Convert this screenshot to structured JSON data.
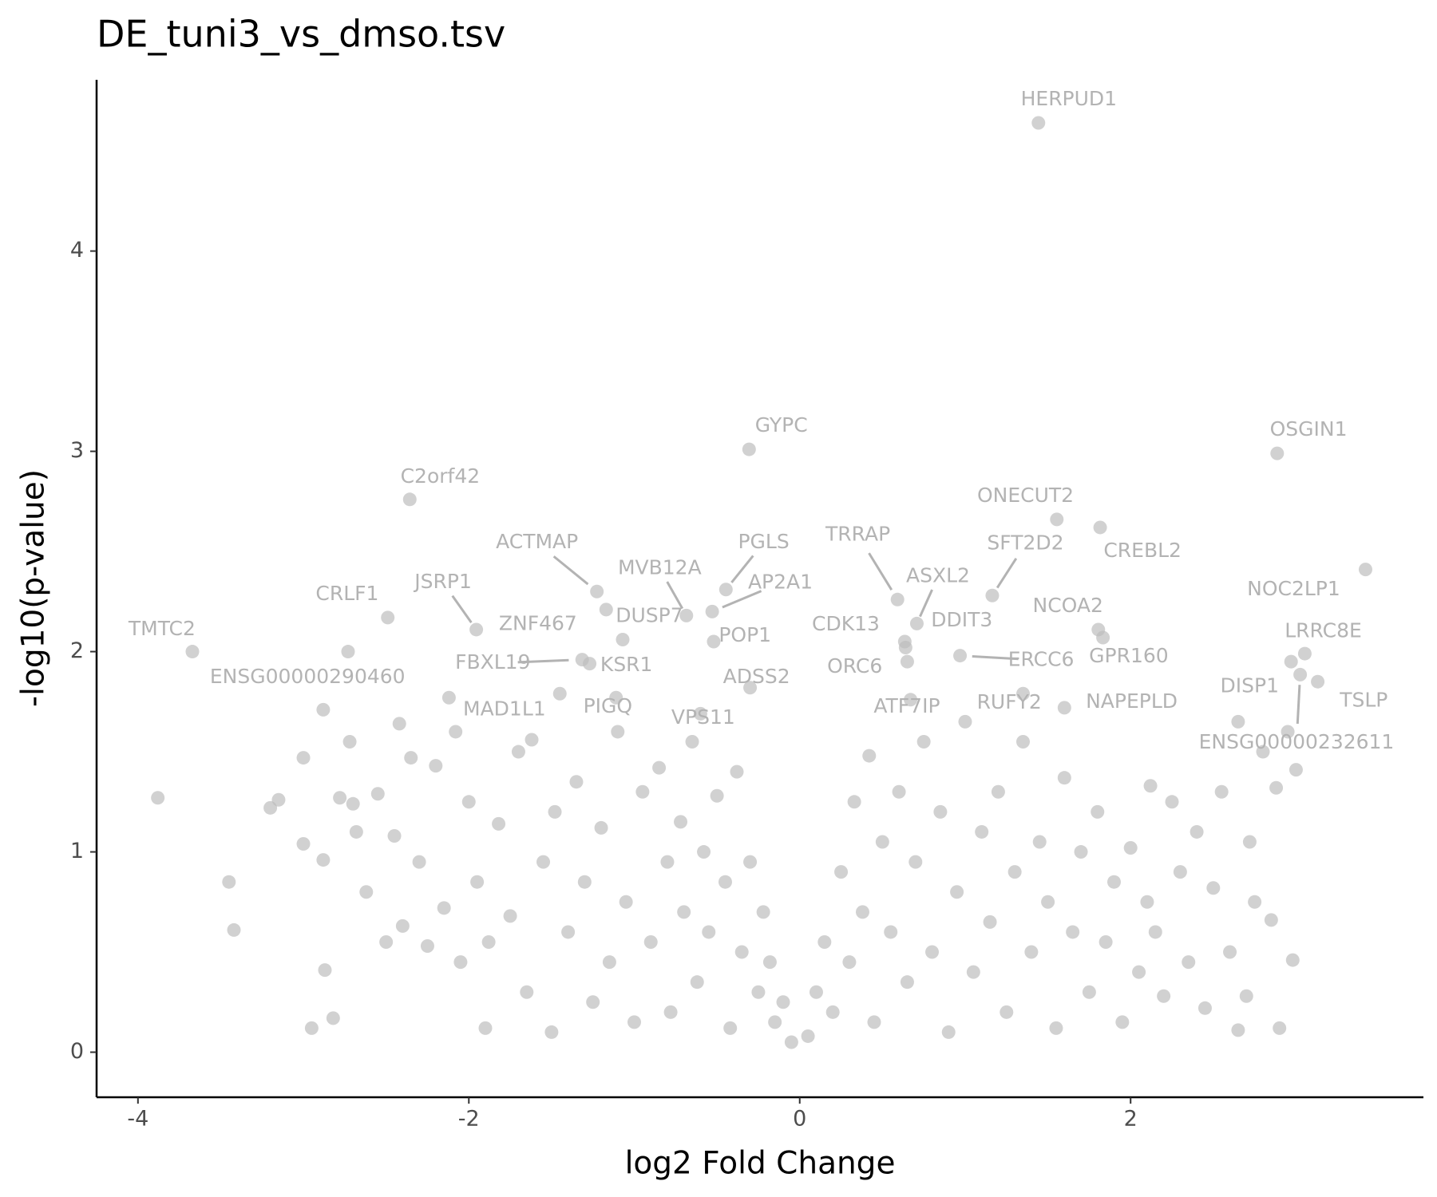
{
  "chart_data": {
    "type": "scatter",
    "title": "DE_tuni3_vs_dmso.tsv",
    "x_label": "log2 Fold Change",
    "y_label": "-log10(p-value)",
    "xlim": [
      -4.25,
      3.77
    ],
    "ylim": [
      -0.225,
      4.855
    ],
    "xticks": [
      -4,
      -2,
      0,
      2
    ],
    "yticks": [
      0,
      1,
      2,
      3,
      4
    ],
    "grid": false,
    "color": "#bebebe",
    "label_color": "#b3b3b3",
    "x": [
      -3.88,
      -3.45,
      -3.42,
      -3.2,
      -3.15,
      -3.0,
      -3.0,
      -2.95,
      -2.88,
      -2.88,
      -2.87,
      -2.82,
      -2.78,
      -2.72,
      -2.7,
      -2.68,
      -2.62,
      -2.55,
      -2.5,
      -2.45,
      -2.42,
      -2.4,
      -2.35,
      -2.3,
      -2.25,
      -2.2,
      -2.15,
      -2.12,
      -2.05,
      -2.0,
      -1.95,
      -1.9,
      -1.88,
      -1.82,
      -1.75,
      -1.7,
      -1.65,
      -1.62,
      -1.55,
      -1.5,
      -1.48,
      -1.45,
      -1.4,
      -1.35,
      -1.3,
      -1.25,
      -1.2,
      -1.15,
      -1.1,
      -1.05,
      -1.0,
      -0.95,
      -0.9,
      -0.85,
      -0.8,
      -0.78,
      -0.72,
      -0.7,
      -0.65,
      -0.62,
      -0.58,
      -0.55,
      -0.5,
      -0.45,
      -0.42,
      -0.38,
      -0.35,
      -0.3,
      -0.25,
      -0.22,
      -0.18,
      -0.15,
      -0.1,
      -0.05,
      0.05,
      0.1,
      0.15,
      0.2,
      0.25,
      0.3,
      0.33,
      0.38,
      0.42,
      0.45,
      0.5,
      0.55,
      0.6,
      0.65,
      0.7,
      0.75,
      0.8,
      0.85,
      0.9,
      0.95,
      1.0,
      1.05,
      1.1,
      1.15,
      1.2,
      1.25,
      1.3,
      1.35,
      1.4,
      1.45,
      1.5,
      1.55,
      1.6,
      1.65,
      1.7,
      1.75,
      1.8,
      1.85,
      1.9,
      1.95,
      2.0,
      2.05,
      2.1,
      2.12,
      2.15,
      2.2,
      2.25,
      2.3,
      2.35,
      2.4,
      2.45,
      2.5,
      2.55,
      2.6,
      2.65,
      2.7,
      2.72,
      2.75,
      2.8,
      2.85,
      2.88,
      2.9,
      2.95,
      2.98,
      3.0,
      2.65
    ],
    "y": [
      1.27,
      0.85,
      0.61,
      1.22,
      1.26,
      1.47,
      1.04,
      0.12,
      1.71,
      0.96,
      0.41,
      0.17,
      1.27,
      1.55,
      1.24,
      1.1,
      0.8,
      1.29,
      0.55,
      1.08,
      1.64,
      0.63,
      1.47,
      0.95,
      0.53,
      1.43,
      0.72,
      1.77,
      0.45,
      1.25,
      0.85,
      0.12,
      0.55,
      1.14,
      0.68,
      1.5,
      0.3,
      1.56,
      0.95,
      0.1,
      1.2,
      1.79,
      0.6,
      1.35,
      0.85,
      0.25,
      1.12,
      0.45,
      1.6,
      0.75,
      0.15,
      1.3,
      0.55,
      1.42,
      0.95,
      0.2,
      1.15,
      0.7,
      1.55,
      0.35,
      1.0,
      0.6,
      1.28,
      0.85,
      0.12,
      1.4,
      0.5,
      0.95,
      0.3,
      0.7,
      0.45,
      0.15,
      0.25,
      0.05,
      0.08,
      0.3,
      0.55,
      0.2,
      0.9,
      0.45,
      1.25,
      0.7,
      1.48,
      0.15,
      1.05,
      0.6,
      1.3,
      0.35,
      0.95,
      1.55,
      0.5,
      1.2,
      0.1,
      0.8,
      1.65,
      0.4,
      1.1,
      0.65,
      1.3,
      0.2,
      0.9,
      1.55,
      0.5,
      1.05,
      0.75,
      0.12,
      1.37,
      0.6,
      1.0,
      0.3,
      1.2,
      0.55,
      0.85,
      0.15,
      1.02,
      0.4,
      0.75,
      1.33,
      0.6,
      0.28,
      1.25,
      0.9,
      0.45,
      1.1,
      0.22,
      0.82,
      1.3,
      0.5,
      1.65,
      0.28,
      1.05,
      0.75,
      1.5,
      0.66,
      1.32,
      0.12,
      1.6,
      0.46,
      1.41,
      0.11
    ],
    "labeled_points": [
      {
        "label": "HERPUD1",
        "x": 1.443,
        "y": 4.64
      },
      {
        "label": "GYPC",
        "x": -0.306,
        "y": 3.01
      },
      {
        "label": "OSGIN1",
        "x": 2.886,
        "y": 2.99
      },
      {
        "label": "C2orf42",
        "x": -2.357,
        "y": 2.76
      },
      {
        "label": "ONECUT2",
        "x": 1.554,
        "y": 2.66
      },
      {
        "label": "CREBL2",
        "x": 1.816,
        "y": 2.62
      },
      {
        "label": "ACTMAP",
        "x": -1.226,
        "y": 2.3
      },
      {
        "label": "PGLS",
        "x": -0.446,
        "y": 2.31
      },
      {
        "label": "MVB12A",
        "x": -0.685,
        "y": 2.18
      },
      {
        "label": "AP2A1",
        "x": -0.529,
        "y": 2.2
      },
      {
        "label": "TRRAP",
        "x": 0.591,
        "y": 2.26
      },
      {
        "label": "ASXL2",
        "x": 0.708,
        "y": 2.14
      },
      {
        "label": "SFT2D2",
        "x": 1.164,
        "y": 2.28
      },
      {
        "label": "NOC2LP1",
        "x": 3.42,
        "y": 2.41
      },
      {
        "label": "CRLF1",
        "x": -2.49,
        "y": 2.17
      },
      {
        "label": "JSRP1",
        "x": -1.955,
        "y": 2.11
      },
      {
        "label": "TMTC2",
        "x": -3.671,
        "y": 2.0
      },
      {
        "label": "ENSG00000290460",
        "x": -2.73,
        "y": 2.0
      },
      {
        "label": "FBXL19",
        "x": -1.315,
        "y": 1.96
      },
      {
        "label": "ERCC6",
        "x": 0.969,
        "y": 1.98
      },
      {
        "label": "LRRC8E",
        "x": 3.053,
        "y": 1.99
      },
      {
        "label": "NCOA2",
        "x": 1.805,
        "y": 2.11
      },
      {
        "label": "GPR160",
        "x": 1.833,
        "y": 2.07
      },
      {
        "label": "DISP1",
        "x": 2.97,
        "y": 1.95
      },
      {
        "label": "TSLP",
        "x": 3.131,
        "y": 1.85
      },
      {
        "label": "ENSG00000232611",
        "x": 3.025,
        "y": 1.885
      },
      {
        "label": "ZNF467",
        "x": -1.17,
        "y": 2.21
      },
      {
        "label": "DUSP7",
        "x": -1.07,
        "y": 2.06
      },
      {
        "label": "POP1",
        "x": -0.52,
        "y": 2.05
      },
      {
        "label": "CDK13",
        "x": 0.635,
        "y": 2.05
      },
      {
        "label": "DDIT3",
        "x": 0.64,
        "y": 2.02
      },
      {
        "label": "KSR1",
        "x": -1.27,
        "y": 1.94
      },
      {
        "label": "ORC6",
        "x": 0.65,
        "y": 1.95
      },
      {
        "label": "ADSS2",
        "x": -0.3,
        "y": 1.82
      },
      {
        "label": "MAD1L1",
        "x": -2.08,
        "y": 1.6
      },
      {
        "label": "PIGQ",
        "x": -1.11,
        "y": 1.77
      },
      {
        "label": "VPS11",
        "x": -0.6,
        "y": 1.69
      },
      {
        "label": "ATF7IP",
        "x": 0.67,
        "y": 1.76
      },
      {
        "label": "RUFY2",
        "x": 1.35,
        "y": 1.79
      },
      {
        "label": "NAPEPLD",
        "x": 1.6,
        "y": 1.72
      }
    ]
  }
}
